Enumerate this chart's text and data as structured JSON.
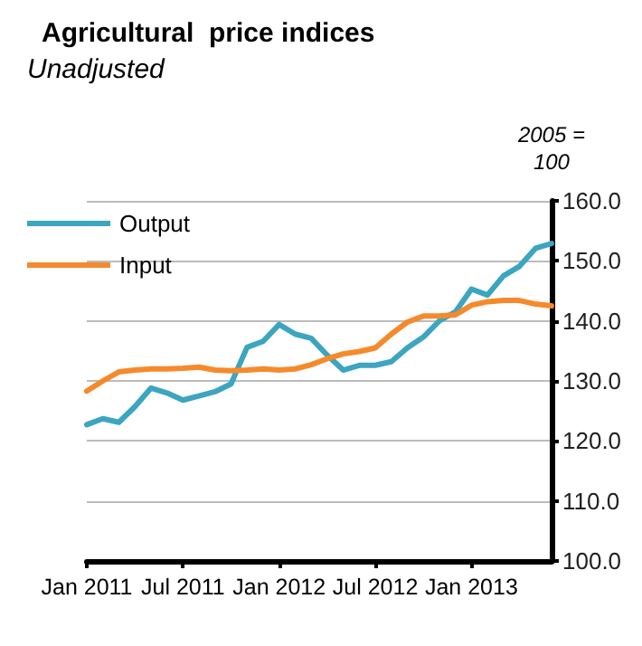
{
  "chart_data": {
    "type": "line",
    "title": "Agricultural  price indices",
    "subtitle": "Unadjusted",
    "ylabel": "2005 =\n100",
    "categories": [
      "Jan 2011",
      null,
      null,
      null,
      null,
      null,
      "Jul 2011",
      null,
      null,
      null,
      null,
      null,
      "Jan 2012",
      null,
      null,
      null,
      null,
      null,
      "Jul 2012",
      null,
      null,
      null,
      null,
      null,
      "Jan 2013",
      null,
      null,
      null,
      null,
      null
    ],
    "series": [
      {
        "name": "Output",
        "color": "#3ca5c0",
        "values": [
          122.7,
          123.7,
          123.1,
          125.7,
          128.8,
          128.0,
          126.8,
          127.5,
          128.2,
          129.5,
          135.6,
          136.6,
          139.4,
          137.8,
          137.1,
          134.3,
          131.8,
          132.6,
          132.6,
          133.2,
          135.5,
          137.3,
          140.0,
          141.5,
          145.3,
          144.3,
          147.5,
          149.1,
          152.1,
          152.9
        ]
      },
      {
        "name": "Input",
        "color": "#f58a2c",
        "values": [
          128.3,
          130.0,
          131.5,
          131.8,
          132.0,
          132.0,
          132.1,
          132.3,
          131.8,
          131.7,
          131.8,
          132.0,
          131.8,
          132.0,
          132.7,
          133.7,
          134.5,
          134.9,
          135.5,
          137.8,
          139.8,
          140.8,
          140.8,
          141.0,
          142.6,
          143.2,
          143.4,
          143.4,
          142.8,
          142.5
        ]
      }
    ],
    "ylim": [
      100,
      160
    ],
    "yticks": [
      {
        "value": 100,
        "label": "100.0"
      },
      {
        "value": 110,
        "label": "110.0"
      },
      {
        "value": 120,
        "label": "120.0"
      },
      {
        "value": 130,
        "label": "130.0"
      },
      {
        "value": 140,
        "label": "140.0"
      },
      {
        "value": 150,
        "label": "150.0"
      },
      {
        "value": 160,
        "label": "160.0"
      }
    ],
    "grid": "y",
    "legend": "top left",
    "marker": "none",
    "line_style": "solid"
  }
}
